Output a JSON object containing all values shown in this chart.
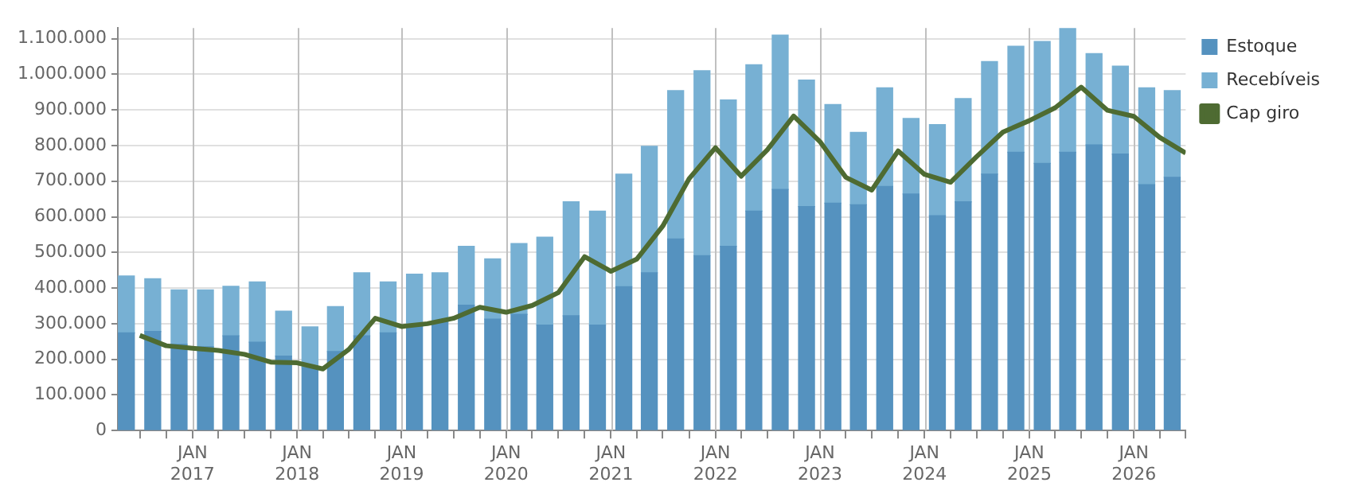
{
  "chart_data": {
    "type": "bar",
    "stacked": true,
    "legend": "top right",
    "grid": true,
    "marker": "none",
    "xlim": [
      "2016-04-15",
      "2026-07-01"
    ],
    "xticks": [
      {
        "value": "2016-07-01",
        "label": null
      },
      {
        "value": "2016-10-01",
        "label": null
      },
      {
        "value": "2017-01-01",
        "label": "JAN 2017"
      },
      {
        "value": "2017-04-01",
        "label": null
      },
      {
        "value": "2017-07-01",
        "label": null
      },
      {
        "value": "2017-10-01",
        "label": null
      },
      {
        "value": "2018-01-01",
        "label": "JAN 2018"
      },
      {
        "value": "2018-04-01",
        "label": null
      },
      {
        "value": "2018-07-01",
        "label": null
      },
      {
        "value": "2018-10-01",
        "label": null
      },
      {
        "value": "2019-01-01",
        "label": "JAN 2019"
      },
      {
        "value": "2019-04-01",
        "label": null
      },
      {
        "value": "2019-07-01",
        "label": null
      },
      {
        "value": "2019-10-01",
        "label": null
      },
      {
        "value": "2020-01-01",
        "label": "JAN 2020"
      },
      {
        "value": "2020-04-01",
        "label": null
      },
      {
        "value": "2020-07-01",
        "label": null
      },
      {
        "value": "2020-10-01",
        "label": null
      },
      {
        "value": "2021-01-01",
        "label": "JAN 2021"
      },
      {
        "value": "2021-04-01",
        "label": null
      },
      {
        "value": "2021-07-01",
        "label": null
      },
      {
        "value": "2021-10-01",
        "label": null
      },
      {
        "value": "2022-01-01",
        "label": "JAN 2022"
      },
      {
        "value": "2022-04-01",
        "label": null
      },
      {
        "value": "2022-07-01",
        "label": null
      },
      {
        "value": "2022-10-01",
        "label": null
      },
      {
        "value": "2023-01-01",
        "label": "JAN 2023"
      },
      {
        "value": "2023-04-01",
        "label": null
      },
      {
        "value": "2023-07-01",
        "label": null
      },
      {
        "value": "2023-10-01",
        "label": null
      },
      {
        "value": "2024-01-01",
        "label": "JAN 2024"
      },
      {
        "value": "2024-04-01",
        "label": null
      },
      {
        "value": "2024-07-01",
        "label": null
      },
      {
        "value": "2024-10-01",
        "label": null
      },
      {
        "value": "2025-01-01",
        "label": "JAN 2025"
      },
      {
        "value": "2025-04-01",
        "label": null
      },
      {
        "value": "2025-07-01",
        "label": null
      },
      {
        "value": "2025-10-01",
        "label": null
      },
      {
        "value": "2026-01-01",
        "label": "JAN 2026"
      },
      {
        "value": "2026-04-01",
        "label": null
      },
      {
        "value": "2026-07-01",
        "label": null
      }
    ],
    "ylim": [
      0,
      1130000
    ],
    "yticks": [
      {
        "value": 0,
        "label": "0"
      },
      {
        "value": 100000,
        "label": "100.000"
      },
      {
        "value": 200000,
        "label": "200.000"
      },
      {
        "value": 300000,
        "label": "300.000"
      },
      {
        "value": 400000,
        "label": "400.000"
      },
      {
        "value": 500000,
        "label": "500.000"
      },
      {
        "value": 600000,
        "label": "600.000"
      },
      {
        "value": 700000,
        "label": "700.000"
      },
      {
        "value": 800000,
        "label": "800.000"
      },
      {
        "value": 900000,
        "label": "900.000"
      },
      {
        "value": 1000000,
        "label": "1.000.000"
      },
      {
        "value": 1100000,
        "label": "1.100.000"
      }
    ],
    "x": [
      "2016-05-15",
      "2016-08-15",
      "2016-11-15",
      "2017-02-15",
      "2017-05-15",
      "2017-08-15",
      "2017-11-15",
      "2018-02-15",
      "2018-05-15",
      "2018-08-15",
      "2018-11-15",
      "2019-02-15",
      "2019-05-15",
      "2019-08-15",
      "2019-11-15",
      "2020-02-15",
      "2020-05-15",
      "2020-08-15",
      "2020-11-15",
      "2021-02-15",
      "2021-05-15",
      "2021-08-15",
      "2021-11-15",
      "2022-02-15",
      "2022-05-15",
      "2022-08-15",
      "2022-11-15",
      "2023-02-15",
      "2023-05-15",
      "2023-08-15",
      "2023-11-15",
      "2024-02-15",
      "2024-05-15",
      "2024-08-15",
      "2024-11-15",
      "2025-02-15",
      "2025-05-15",
      "2025-08-15",
      "2025-11-15",
      "2026-02-15",
      "2026-05-15"
    ],
    "series": [
      {
        "name": "Estoque",
        "color": "#5592bf",
        "values": [
          274000,
          278000,
          242000,
          235000,
          266000,
          248000,
          209000,
          177000,
          222000,
          266000,
          274000,
          293000,
          307000,
          352000,
          313000,
          326000,
          296000,
          322000,
          296000,
          404000,
          443000,
          538000,
          491000,
          517000,
          616000,
          677000,
          629000,
          638000,
          634000,
          685000,
          664000,
          603000,
          642000,
          720000,
          781000,
          750000,
          781000,
          802000,
          776000,
          690000,
          711000
        ]
      },
      {
        "name": "Recebíveis",
        "color": "#77b0d3",
        "values": [
          160000,
          148000,
          153000,
          160000,
          139000,
          169000,
          126000,
          114000,
          126000,
          177000,
          143000,
          146000,
          136000,
          165000,
          169000,
          199000,
          247000,
          320000,
          320000,
          316000,
          355000,
          416000,
          519000,
          411000,
          411000,
          433000,
          355000,
          277000,
          203000,
          277000,
          212000,
          256000,
          290000,
          316000,
          298000,
          342000,
          350000,
          256000,
          247000,
          272000,
          243000
        ]
      },
      {
        "name": "Cap giro",
        "type": "line",
        "color": "#4e6b32",
        "x": [
          "2016-07-01",
          "2016-10-01",
          "2017-01-01",
          "2017-04-01",
          "2017-07-01",
          "2017-10-01",
          "2018-01-01",
          "2018-04-01",
          "2018-07-01",
          "2018-10-01",
          "2019-01-01",
          "2019-04-01",
          "2019-07-01",
          "2019-10-01",
          "2020-01-01",
          "2020-04-01",
          "2020-07-01",
          "2020-10-01",
          "2021-01-01",
          "2021-04-01",
          "2021-07-01",
          "2021-10-01",
          "2022-01-01",
          "2022-04-01",
          "2022-07-01",
          "2022-10-01",
          "2023-01-01",
          "2023-04-01",
          "2023-07-01",
          "2023-10-01",
          "2024-01-01",
          "2024-04-01",
          "2024-07-01",
          "2024-10-01",
          "2025-01-01",
          "2025-04-01",
          "2025-07-01",
          "2025-10-01",
          "2026-01-01",
          "2026-04-01",
          "2026-07-01"
        ],
        "values": [
          267000,
          238000,
          231000,
          225000,
          214000,
          192000,
          190000,
          173000,
          228000,
          315000,
          292000,
          300000,
          315000,
          346000,
          332000,
          351000,
          387000,
          488000,
          447000,
          481000,
          574000,
          707000,
          794000,
          714000,
          788000,
          883000,
          811000,
          711000,
          675000,
          785000,
          719000,
          697000,
          769000,
          838000,
          870000,
          906000,
          964000,
          899000,
          882000,
          823000,
          779000
        ]
      }
    ]
  }
}
